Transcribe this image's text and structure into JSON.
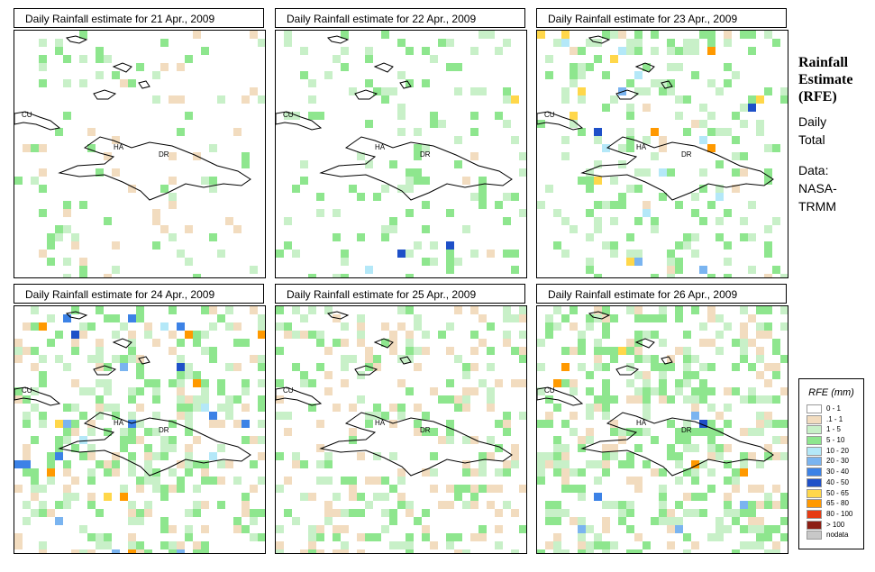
{
  "panels": [
    {
      "title": "Daily Rainfall estimate for  21 Apr., 2009",
      "variant": 0
    },
    {
      "title": "Daily Rainfall estimate for  22 Apr., 2009",
      "variant": 1
    },
    {
      "title": "Daily Rainfall estimate for  23 Apr., 2009",
      "variant": 2
    },
    {
      "title": "Daily Rainfall estimate for  24 Apr., 2009",
      "variant": 3
    },
    {
      "title": "Daily Rainfall estimate for  25 Apr., 2009",
      "variant": 4
    },
    {
      "title": "Daily Rainfall estimate for  26 Apr., 2009",
      "variant": 5
    }
  ],
  "map_labels": {
    "cuba": "CU",
    "haiti": "HA",
    "dr": "DR"
  },
  "side": {
    "title_line1": "Rainfall",
    "title_line2": "Estimate",
    "title_line3": "(RFE)",
    "period_line1": "Daily",
    "period_line2": "Total",
    "source_line1": "Data:",
    "source_line2": "NASA-",
    "source_line3": "TRMM"
  },
  "legend": {
    "title": "RFE (mm)",
    "items": [
      {
        "label": "0 - 1",
        "color": "#ffffff"
      },
      {
        "label": ".1 - 1",
        "color": "#f2dcbf"
      },
      {
        "label": "1 - 5",
        "color": "#c8f0c8"
      },
      {
        "label": "5 - 10",
        "color": "#8ee68e"
      },
      {
        "label": "10 - 20",
        "color": "#b4e8f8"
      },
      {
        "label": "20 - 30",
        "color": "#7ab4f0"
      },
      {
        "label": "30 - 40",
        "color": "#3c82e6"
      },
      {
        "label": "40 - 50",
        "color": "#1e50c8"
      },
      {
        "label": "50 - 65",
        "color": "#ffd74a"
      },
      {
        "label": "65 - 80",
        "color": "#ff9900"
      },
      {
        "label": "80 - 100",
        "color": "#e63c14"
      },
      {
        "label": "> 100",
        "color": "#8c1e14"
      },
      {
        "label": "nodata",
        "color": "#c8c8c8"
      }
    ]
  }
}
